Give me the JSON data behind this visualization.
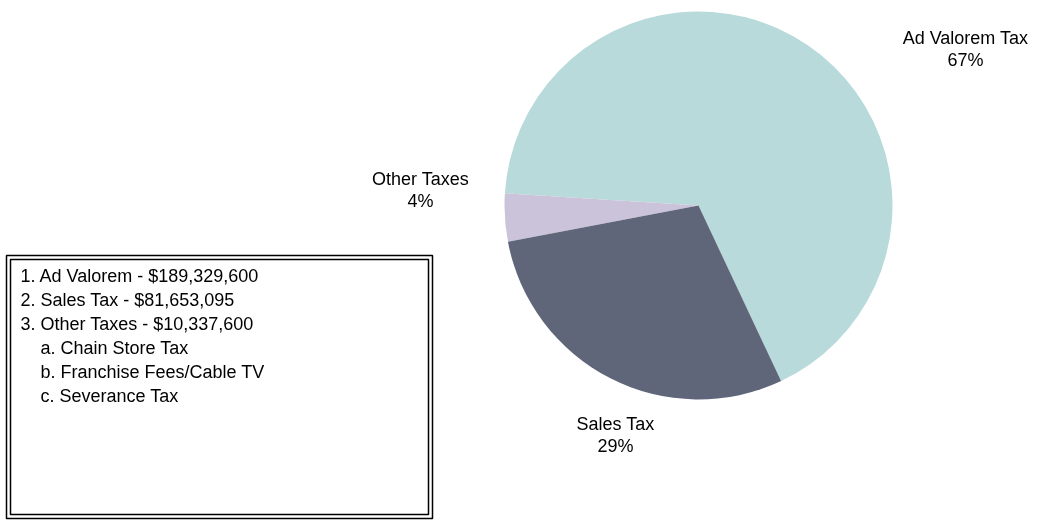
{
  "chart_data": {
    "type": "pie",
    "categories": [
      "Ad Valorem Tax",
      "Other Taxes",
      "Sales Tax"
    ],
    "values": [
      67,
      4,
      29
    ],
    "colors": [
      "#b9dadb",
      "#cbc3da",
      "#5f667a"
    ],
    "value_labels": [
      "67%",
      "4%",
      "29%"
    ],
    "legend": false,
    "annotations": [
      "1.  Ad Valorem - $189,329,600",
      "2.  Sales Tax - $81,653,095",
      "3.  Other Taxes - $10,337,600",
      "     a.  Chain Store Tax",
      "     b.  Franchise Fees/Cable TV",
      "     c.  Severance Tax"
    ]
  }
}
